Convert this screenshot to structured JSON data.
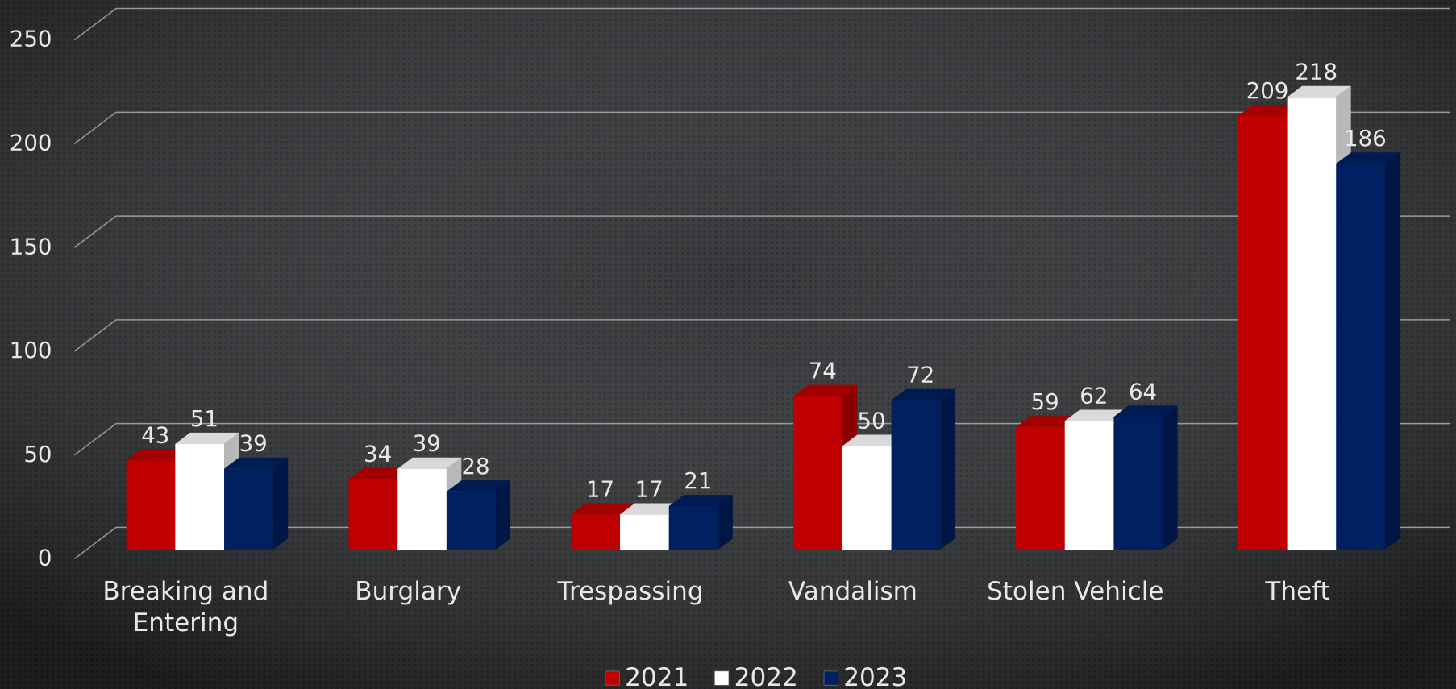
{
  "chart_data": {
    "type": "bar3d",
    "categories": [
      "Breaking and Entering",
      "Burglary",
      "Trespassing",
      "Vandalism",
      "Stolen Vehicle",
      "Theft"
    ],
    "series": [
      {
        "name": "2021",
        "color": "#c00000",
        "values": [
          43,
          34,
          17,
          74,
          59,
          209
        ]
      },
      {
        "name": "2022",
        "color": "#ffffff",
        "values": [
          51,
          39,
          17,
          50,
          62,
          218
        ]
      },
      {
        "name": "2023",
        "color": "#002060",
        "values": [
          39,
          28,
          21,
          72,
          64,
          186
        ]
      }
    ],
    "ylim": [
      0,
      250
    ],
    "yticks": [
      0,
      50,
      100,
      150,
      200,
      250
    ],
    "grid": true,
    "legend": "bottom"
  }
}
